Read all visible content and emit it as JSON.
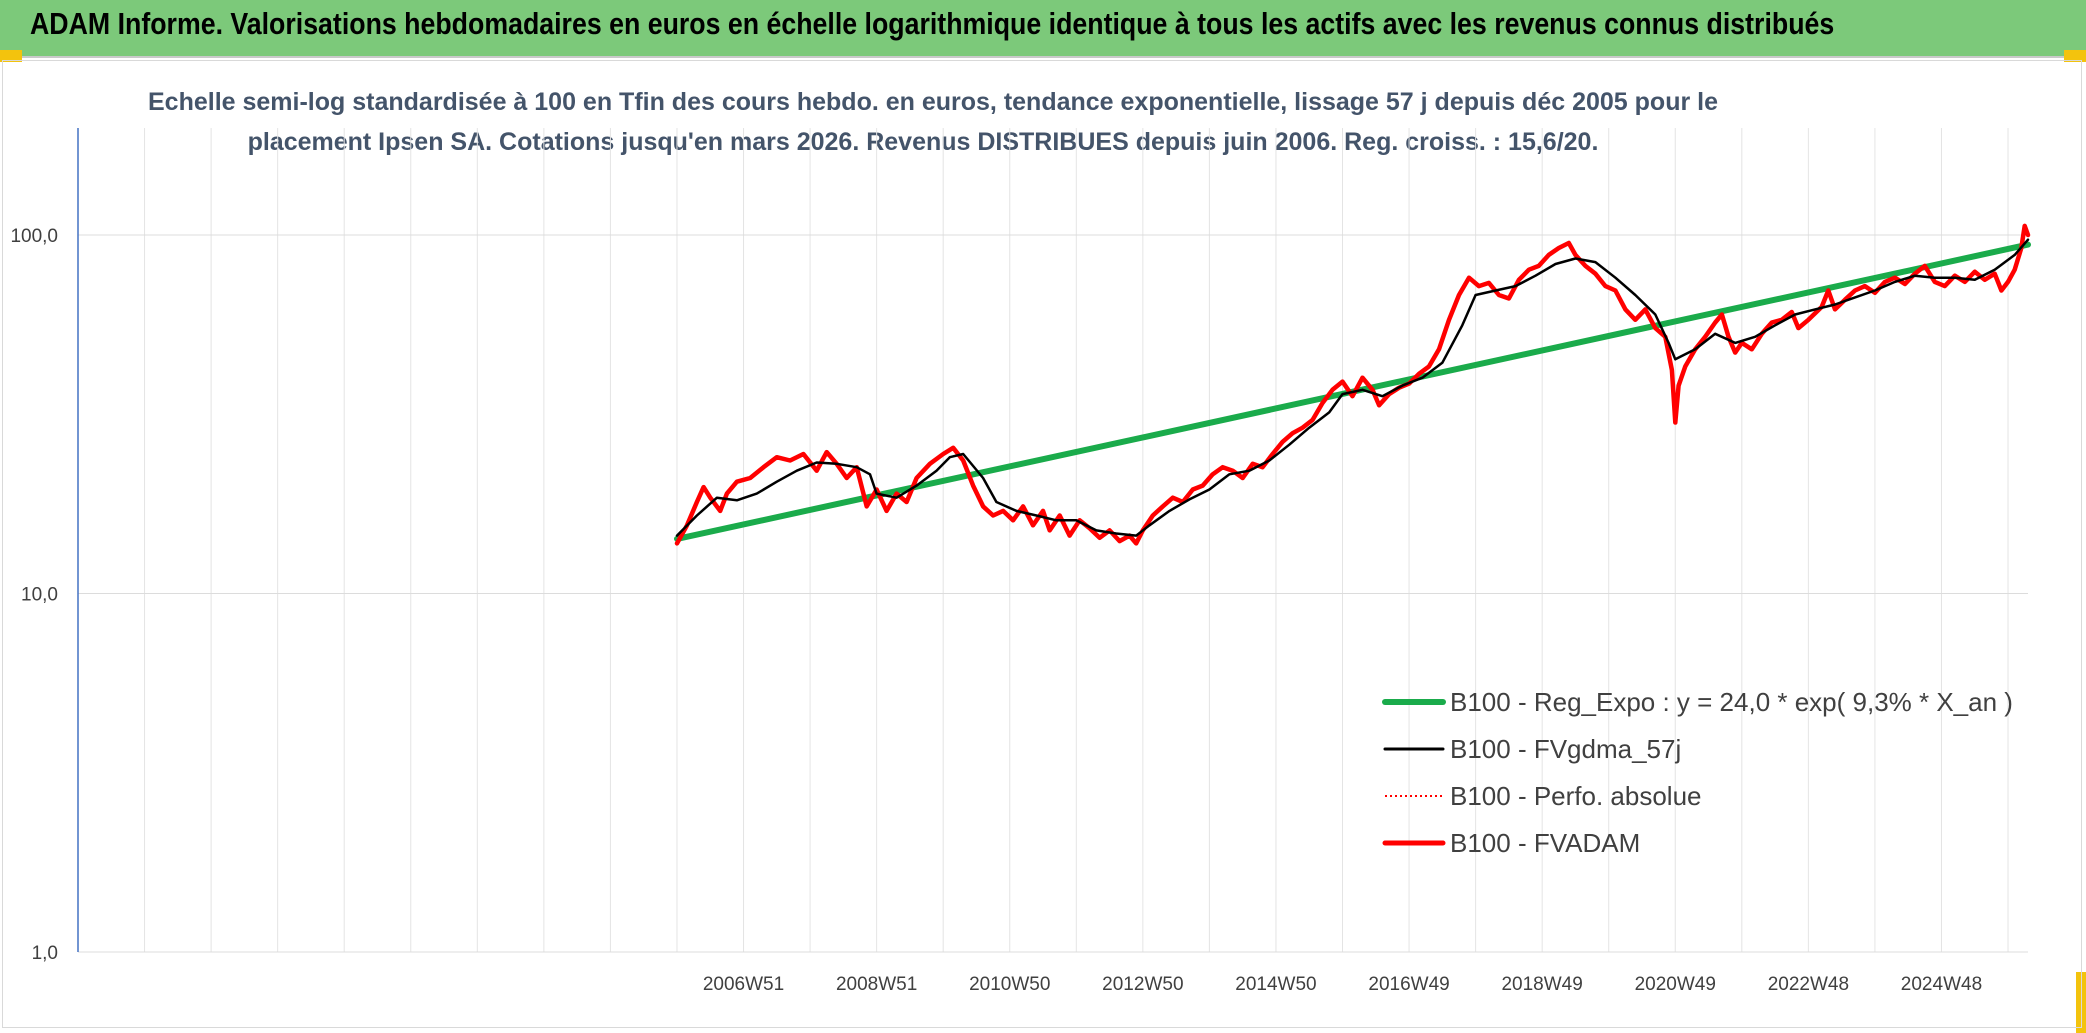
{
  "header": {
    "title": "ADAM Informe. Valorisations hebdomadaires en euros en échelle logarithmique identique à tous les actifs avec les revenus connus distribués"
  },
  "chart_data": {
    "type": "line",
    "title_line1": "Echelle semi-log standardisée à 100 en Tfin des cours hebdo. en euros, tendance exponentielle, lissage 57 j depuis déc 2005 pour le",
    "title_line2": "placement Ipsen SA. Cotations jusqu'en mars 2026. Revenus DISTRIBUES depuis juin 2006. Reg. croiss. : 15,6/20.",
    "y_scale": "log",
    "ylim": [
      1,
      200
    ],
    "y_ticks": [
      {
        "value": 1,
        "label": "1,0"
      },
      {
        "value": 10,
        "label": "10,0"
      },
      {
        "value": 100,
        "label": "100,0"
      }
    ],
    "x_range": [
      1997.0,
      2026.3
    ],
    "x_ticks": [
      {
        "x": 2007.0,
        "label": "2006W51"
      },
      {
        "x": 2009.0,
        "label": "2008W51"
      },
      {
        "x": 2011.0,
        "label": "2010W50"
      },
      {
        "x": 2013.0,
        "label": "2012W50"
      },
      {
        "x": 2015.0,
        "label": "2014W50"
      },
      {
        "x": 2017.0,
        "label": "2016W49"
      },
      {
        "x": 2019.0,
        "label": "2018W49"
      },
      {
        "x": 2021.0,
        "label": "2020W49"
      },
      {
        "x": 2023.0,
        "label": "2022W48"
      },
      {
        "x": 2025.0,
        "label": "2024W48"
      }
    ],
    "gridlines": {
      "horizontal": true,
      "vertical": true,
      "vertical_step": 1
    },
    "legend_position": "bottom-right",
    "series": [
      {
        "name": "B100 - Reg_Expo : y = 24,0 * exp( 9,3% *  X_an )",
        "color": "#1aab4b",
        "style": "solid-thick",
        "points": [
          [
            2006.0,
            14.2
          ],
          [
            2026.3,
            94.0
          ]
        ]
      },
      {
        "name": "B100 - FVgdma_57j",
        "color": "#000000",
        "style": "solid",
        "points": [
          [
            2006.0,
            14.5
          ],
          [
            2006.3,
            16.5
          ],
          [
            2006.6,
            18.5
          ],
          [
            2006.9,
            18.2
          ],
          [
            2007.2,
            19.0
          ],
          [
            2007.5,
            20.5
          ],
          [
            2007.8,
            22.0
          ],
          [
            2008.1,
            23.2
          ],
          [
            2008.4,
            23.0
          ],
          [
            2008.7,
            22.5
          ],
          [
            2008.9,
            21.5
          ],
          [
            2009.0,
            19.0
          ],
          [
            2009.3,
            18.5
          ],
          [
            2009.6,
            20.0
          ],
          [
            2009.9,
            22.0
          ],
          [
            2010.1,
            24.0
          ],
          [
            2010.3,
            24.5
          ],
          [
            2010.6,
            21.0
          ],
          [
            2010.8,
            18.0
          ],
          [
            2011.1,
            17.0
          ],
          [
            2011.4,
            16.5
          ],
          [
            2011.7,
            16.0
          ],
          [
            2012.0,
            16.0
          ],
          [
            2012.3,
            15.0
          ],
          [
            2012.6,
            14.7
          ],
          [
            2012.9,
            14.5
          ],
          [
            2013.1,
            15.5
          ],
          [
            2013.4,
            17.0
          ],
          [
            2013.7,
            18.3
          ],
          [
            2014.0,
            19.5
          ],
          [
            2014.3,
            21.5
          ],
          [
            2014.6,
            22.0
          ],
          [
            2014.9,
            23.5
          ],
          [
            2015.2,
            26.0
          ],
          [
            2015.5,
            29.0
          ],
          [
            2015.8,
            32.0
          ],
          [
            2016.0,
            36.0
          ],
          [
            2016.3,
            37.0
          ],
          [
            2016.6,
            35.5
          ],
          [
            2016.9,
            38.0
          ],
          [
            2017.2,
            40.0
          ],
          [
            2017.5,
            44.0
          ],
          [
            2017.8,
            56.0
          ],
          [
            2018.0,
            68.0
          ],
          [
            2018.3,
            70.0
          ],
          [
            2018.6,
            72.0
          ],
          [
            2018.9,
            77.0
          ],
          [
            2019.2,
            83.0
          ],
          [
            2019.5,
            86.0
          ],
          [
            2019.8,
            84.0
          ],
          [
            2020.1,
            76.0
          ],
          [
            2020.4,
            68.0
          ],
          [
            2020.7,
            60.0
          ],
          [
            2020.9,
            50.0
          ],
          [
            2021.0,
            45.0
          ],
          [
            2021.3,
            48.0
          ],
          [
            2021.6,
            53.0
          ],
          [
            2021.9,
            50.0
          ],
          [
            2022.2,
            52.0
          ],
          [
            2022.5,
            56.0
          ],
          [
            2022.8,
            60.0
          ],
          [
            2023.1,
            62.0
          ],
          [
            2023.4,
            64.0
          ],
          [
            2023.7,
            67.0
          ],
          [
            2024.0,
            70.0
          ],
          [
            2024.3,
            74.0
          ],
          [
            2024.6,
            77.0
          ],
          [
            2024.9,
            76.0
          ],
          [
            2025.2,
            76.0
          ],
          [
            2025.5,
            75.0
          ],
          [
            2025.8,
            80.0
          ],
          [
            2026.1,
            88.0
          ],
          [
            2026.3,
            97.0
          ]
        ]
      },
      {
        "name": "B100 - Perfo. absolue",
        "color": "#ff0000",
        "style": "dotted",
        "points": []
      },
      {
        "name": "B100 - FVADAM",
        "color": "#ff0000",
        "style": "solid-thick",
        "points": [
          [
            2006.0,
            13.8
          ],
          [
            2006.15,
            15.5
          ],
          [
            2006.3,
            18.0
          ],
          [
            2006.4,
            19.8
          ],
          [
            2006.5,
            18.5
          ],
          [
            2006.65,
            17.0
          ],
          [
            2006.75,
            19.0
          ],
          [
            2006.9,
            20.5
          ],
          [
            2007.1,
            21.0
          ],
          [
            2007.3,
            22.5
          ],
          [
            2007.5,
            24.0
          ],
          [
            2007.7,
            23.5
          ],
          [
            2007.9,
            24.5
          ],
          [
            2008.1,
            22.0
          ],
          [
            2008.25,
            24.8
          ],
          [
            2008.4,
            23.0
          ],
          [
            2008.55,
            21.0
          ],
          [
            2008.7,
            22.5
          ],
          [
            2008.85,
            17.5
          ],
          [
            2009.0,
            19.5
          ],
          [
            2009.15,
            17.0
          ],
          [
            2009.3,
            19.0
          ],
          [
            2009.45,
            18.0
          ],
          [
            2009.6,
            21.0
          ],
          [
            2009.8,
            23.0
          ],
          [
            2010.0,
            24.5
          ],
          [
            2010.15,
            25.5
          ],
          [
            2010.3,
            23.5
          ],
          [
            2010.45,
            20.0
          ],
          [
            2010.6,
            17.5
          ],
          [
            2010.75,
            16.5
          ],
          [
            2010.9,
            17.0
          ],
          [
            2011.05,
            16.0
          ],
          [
            2011.2,
            17.5
          ],
          [
            2011.35,
            15.5
          ],
          [
            2011.5,
            17.0
          ],
          [
            2011.6,
            15.0
          ],
          [
            2011.75,
            16.5
          ],
          [
            2011.9,
            14.5
          ],
          [
            2012.05,
            16.0
          ],
          [
            2012.2,
            15.2
          ],
          [
            2012.35,
            14.3
          ],
          [
            2012.5,
            15.0
          ],
          [
            2012.65,
            14.0
          ],
          [
            2012.8,
            14.5
          ],
          [
            2012.9,
            13.8
          ],
          [
            2013.0,
            15.0
          ],
          [
            2013.15,
            16.5
          ],
          [
            2013.3,
            17.5
          ],
          [
            2013.45,
            18.5
          ],
          [
            2013.6,
            18.0
          ],
          [
            2013.75,
            19.5
          ],
          [
            2013.9,
            20.0
          ],
          [
            2014.05,
            21.5
          ],
          [
            2014.2,
            22.5
          ],
          [
            2014.35,
            22.0
          ],
          [
            2014.5,
            21.0
          ],
          [
            2014.65,
            23.0
          ],
          [
            2014.8,
            22.5
          ],
          [
            2014.95,
            24.5
          ],
          [
            2015.1,
            26.5
          ],
          [
            2015.25,
            28.0
          ],
          [
            2015.4,
            29.0
          ],
          [
            2015.55,
            30.5
          ],
          [
            2015.7,
            34.0
          ],
          [
            2015.85,
            37.0
          ],
          [
            2016.0,
            39.0
          ],
          [
            2016.15,
            35.5
          ],
          [
            2016.3,
            40.0
          ],
          [
            2016.45,
            37.0
          ],
          [
            2016.55,
            33.5
          ],
          [
            2016.7,
            36.0
          ],
          [
            2016.85,
            37.5
          ],
          [
            2017.0,
            38.5
          ],
          [
            2017.15,
            41.0
          ],
          [
            2017.3,
            43.0
          ],
          [
            2017.45,
            48.0
          ],
          [
            2017.6,
            58.0
          ],
          [
            2017.75,
            68.0
          ],
          [
            2017.9,
            76.0
          ],
          [
            2018.05,
            72.0
          ],
          [
            2018.2,
            73.5
          ],
          [
            2018.35,
            68.0
          ],
          [
            2018.5,
            66.5
          ],
          [
            2018.65,
            75.0
          ],
          [
            2018.8,
            80.0
          ],
          [
            2018.95,
            82.0
          ],
          [
            2019.1,
            88.0
          ],
          [
            2019.25,
            92.0
          ],
          [
            2019.4,
            95.0
          ],
          [
            2019.5,
            88.0
          ],
          [
            2019.65,
            82.0
          ],
          [
            2019.8,
            78.0
          ],
          [
            2019.95,
            72.0
          ],
          [
            2020.1,
            70.0
          ],
          [
            2020.25,
            62.0
          ],
          [
            2020.4,
            58.0
          ],
          [
            2020.55,
            62.0
          ],
          [
            2020.7,
            55.0
          ],
          [
            2020.85,
            52.0
          ],
          [
            2020.95,
            42.0
          ],
          [
            2021.0,
            30.0
          ],
          [
            2021.05,
            38.0
          ],
          [
            2021.15,
            43.0
          ],
          [
            2021.3,
            48.0
          ],
          [
            2021.45,
            52.0
          ],
          [
            2021.6,
            57.0
          ],
          [
            2021.7,
            60.0
          ],
          [
            2021.8,
            52.0
          ],
          [
            2021.9,
            47.0
          ],
          [
            2022.0,
            50.0
          ],
          [
            2022.15,
            48.0
          ],
          [
            2022.3,
            53.0
          ],
          [
            2022.45,
            57.0
          ],
          [
            2022.6,
            58.0
          ],
          [
            2022.75,
            61.0
          ],
          [
            2022.85,
            55.0
          ],
          [
            2023.0,
            58.0
          ],
          [
            2023.2,
            63.0
          ],
          [
            2023.3,
            70.0
          ],
          [
            2023.4,
            62.0
          ],
          [
            2023.55,
            66.0
          ],
          [
            2023.7,
            70.0
          ],
          [
            2023.85,
            72.0
          ],
          [
            2024.0,
            69.0
          ],
          [
            2024.15,
            74.0
          ],
          [
            2024.3,
            76.0
          ],
          [
            2024.45,
            73.0
          ],
          [
            2024.6,
            78.0
          ],
          [
            2024.75,
            82.0
          ],
          [
            2024.9,
            74.0
          ],
          [
            2025.05,
            72.0
          ],
          [
            2025.2,
            77.0
          ],
          [
            2025.35,
            74.0
          ],
          [
            2025.5,
            79.0
          ],
          [
            2025.65,
            75.0
          ],
          [
            2025.8,
            78.0
          ],
          [
            2025.9,
            70.0
          ],
          [
            2026.0,
            74.0
          ],
          [
            2026.1,
            80.0
          ],
          [
            2026.2,
            92.0
          ],
          [
            2026.25,
            106.0
          ],
          [
            2026.3,
            100.0
          ]
        ]
      }
    ]
  }
}
